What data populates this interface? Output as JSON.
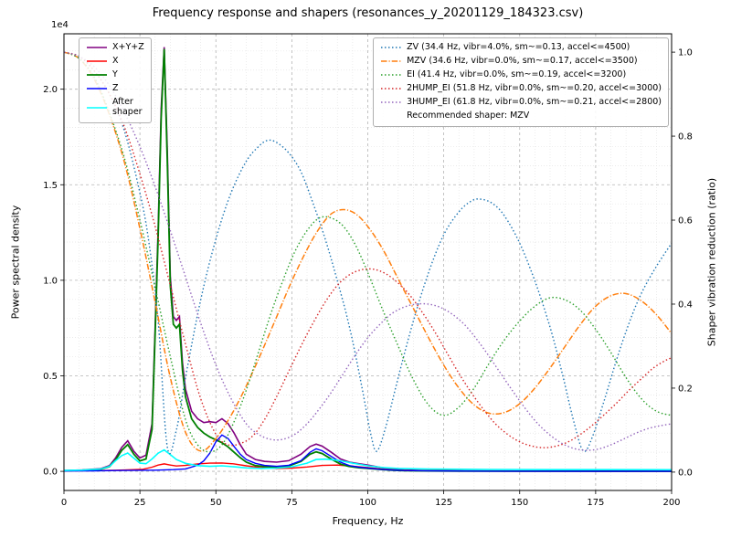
{
  "title": "Frequency response and shapers (resonances_y_20201129_184323.csv)",
  "axes": {
    "x": {
      "label": "Frequency, Hz",
      "min": 0,
      "max": 200,
      "ticks": [
        0,
        25,
        50,
        75,
        100,
        125,
        150,
        175,
        200
      ],
      "minor_step": 5
    },
    "y_left": {
      "label": "Power spectral density",
      "offset_text": "1e4",
      "min": -1000,
      "max": 22900,
      "ticks": [
        0,
        5000,
        10000,
        15000,
        20000
      ],
      "tick_labels": [
        "0.0",
        "0.5",
        "1.0",
        "1.5",
        "2.0"
      ],
      "minor_step": 1000
    },
    "y_right": {
      "label": "Shaper vibration reduction (ratio)",
      "min": -0.0437,
      "max": 1.0437,
      "ticks": [
        0,
        0.2,
        0.4,
        0.6,
        0.8,
        1.0
      ],
      "tick_labels": [
        "0.0",
        "0.2",
        "0.4",
        "0.6",
        "0.8",
        "1.0"
      ]
    }
  },
  "chart_data": {
    "type": "line",
    "title": "Frequency response and shapers (resonances_y_20201129_184323.csv)",
    "xlabel": "Frequency, Hz",
    "ylabel_left": "Power spectral density",
    "ylabel_right": "Shaper vibration reduction (ratio)",
    "recommended_shaper_note": "Recommended shaper: MZV",
    "series": [
      {
        "name": "x-y-z",
        "label": "X+Y+Z",
        "group": "psd",
        "axis": "left",
        "color": "#800080",
        "style": "solid",
        "width": 1.6,
        "smooth": false,
        "x": [
          0,
          6,
          12,
          15,
          17,
          19,
          21,
          23,
          25,
          27,
          29,
          30,
          31,
          32,
          33,
          34,
          35,
          36,
          37,
          38,
          39,
          40,
          42,
          44,
          46,
          48,
          50,
          52,
          54,
          56,
          58,
          60,
          63,
          66,
          70,
          74,
          78,
          81,
          83,
          85,
          88,
          91,
          94,
          97,
          100,
          104,
          108,
          112,
          118,
          130,
          150,
          175,
          200
        ],
        "y": [
          40,
          70,
          140,
          300,
          700,
          1250,
          1600,
          1050,
          700,
          850,
          2500,
          7600,
          12800,
          19000,
          22200,
          16800,
          10200,
          8100,
          7900,
          8100,
          5700,
          4300,
          3150,
          2750,
          2550,
          2600,
          2550,
          2750,
          2500,
          2000,
          1400,
          900,
          620,
          520,
          480,
          560,
          900,
          1300,
          1430,
          1320,
          1000,
          650,
          480,
          400,
          330,
          210,
          120,
          70,
          40,
          22,
          14,
          10,
          8
        ]
      },
      {
        "name": "x",
        "label": "X",
        "group": "psd",
        "axis": "left",
        "color": "#ff0000",
        "style": "solid",
        "width": 1.4,
        "smooth": false,
        "x": [
          0,
          10,
          20,
          26,
          29,
          31,
          33,
          35,
          37,
          40,
          44,
          48,
          52,
          56,
          60,
          65,
          70,
          75,
          80,
          85,
          90,
          95,
          100,
          105,
          110,
          120,
          140,
          170,
          200
        ],
        "y": [
          25,
          35,
          70,
          110,
          220,
          330,
          390,
          330,
          280,
          310,
          390,
          430,
          440,
          390,
          290,
          190,
          150,
          170,
          230,
          310,
          330,
          270,
          200,
          120,
          60,
          30,
          15,
          8,
          5
        ]
      },
      {
        "name": "y",
        "label": "Y",
        "group": "psd",
        "axis": "left",
        "color": "#008000",
        "style": "solid",
        "width": 1.8,
        "smooth": false,
        "x": [
          0,
          6,
          12,
          15,
          17,
          19,
          21,
          23,
          25,
          27,
          29,
          30,
          31,
          32,
          33,
          34,
          35,
          36,
          37,
          38,
          39,
          40,
          42,
          44,
          46,
          48,
          50,
          52,
          54,
          56,
          58,
          60,
          63,
          66,
          70,
          74,
          78,
          81,
          83,
          85,
          88,
          91,
          94,
          97,
          100,
          104,
          108,
          112,
          118,
          130,
          150,
          175,
          200
        ],
        "y": [
          30,
          55,
          110,
          250,
          600,
          1100,
          1400,
          900,
          550,
          650,
          2200,
          7200,
          12300,
          18500,
          22100,
          16200,
          9700,
          7700,
          7500,
          7700,
          5300,
          3900,
          2750,
          2300,
          2000,
          1800,
          1650,
          1500,
          1280,
          1000,
          720,
          480,
          300,
          250,
          230,
          280,
          520,
          900,
          1020,
          930,
          640,
          380,
          250,
          190,
          150,
          100,
          60,
          38,
          25,
          14,
          9,
          7,
          5
        ]
      },
      {
        "name": "z",
        "label": "Z",
        "group": "psd",
        "axis": "left",
        "color": "#0000ff",
        "style": "solid",
        "width": 1.4,
        "smooth": false,
        "x": [
          0,
          10,
          20,
          30,
          36,
          40,
          44,
          46,
          48,
          50,
          52,
          54,
          56,
          58,
          60,
          63,
          66,
          70,
          74,
          78,
          81,
          83,
          85,
          88,
          91,
          94,
          97,
          100,
          104,
          108,
          112,
          120,
          140,
          170,
          200
        ],
        "y": [
          20,
          28,
          45,
          60,
          90,
          130,
          320,
          550,
          950,
          1550,
          1900,
          1720,
          1300,
          900,
          620,
          420,
          310,
          260,
          320,
          560,
          1000,
          1180,
          1080,
          780,
          480,
          300,
          220,
          170,
          110,
          65,
          40,
          22,
          10,
          6,
          4
        ]
      },
      {
        "name": "after-shaper",
        "label": "After\nshaper",
        "group": "psd",
        "axis": "left",
        "color": "#00ffff",
        "style": "solid",
        "width": 1.6,
        "smooth": false,
        "x": [
          0,
          6,
          12,
          15,
          17,
          19,
          21,
          23,
          25,
          27,
          29,
          31,
          33,
          35,
          37,
          40,
          44,
          48,
          52,
          56,
          60,
          65,
          70,
          75,
          80,
          83,
          86,
          90,
          95,
          100,
          105,
          110,
          120,
          140,
          160,
          180,
          200
        ],
        "y": [
          45,
          65,
          120,
          260,
          560,
          820,
          960,
          690,
          430,
          400,
          650,
          950,
          1120,
          880,
          620,
          420,
          300,
          260,
          290,
          240,
          180,
          150,
          170,
          240,
          430,
          620,
          640,
          580,
          430,
          290,
          200,
          150,
          120,
          100,
          92,
          88,
          85
        ]
      },
      {
        "name": "zv",
        "label": "ZV (34.4 Hz, vibr=4.0%, sm~=0.13, accel<=4500)",
        "group": "shaper",
        "axis": "right",
        "color": "#1f77b4",
        "style": "dotted",
        "width": 1.4,
        "smooth": true,
        "x": [
          0,
          5,
          10,
          15,
          20,
          25,
          28,
          31,
          34,
          37,
          40,
          45,
          50,
          55,
          60,
          64,
          67,
          70,
          74,
          78,
          82,
          86,
          90,
          94,
          98,
          101,
          103,
          106,
          110,
          115,
          120,
          125,
          130,
          134,
          137,
          141,
          145,
          150,
          155,
          160,
          164,
          168,
          171,
          174,
          178,
          182,
          186,
          190,
          195,
          200
        ],
        "y": [
          1.0,
          0.99,
          0.955,
          0.9,
          0.81,
          0.665,
          0.545,
          0.36,
          0.06,
          0.1,
          0.225,
          0.41,
          0.555,
          0.665,
          0.74,
          0.775,
          0.79,
          0.785,
          0.76,
          0.715,
          0.64,
          0.555,
          0.455,
          0.345,
          0.205,
          0.09,
          0.05,
          0.11,
          0.225,
          0.36,
          0.475,
          0.565,
          0.62,
          0.645,
          0.65,
          0.64,
          0.61,
          0.545,
          0.455,
          0.345,
          0.235,
          0.115,
          0.05,
          0.085,
          0.175,
          0.27,
          0.355,
          0.425,
          0.49,
          0.545
        ]
      },
      {
        "name": "mzv",
        "label": "MZV (34.6 Hz, vibr=0.0%, sm~=0.17, accel<=3500)",
        "group": "shaper",
        "axis": "right",
        "color": "#ff7f0e",
        "style": "dashdot",
        "width": 1.5,
        "smooth": true,
        "x": [
          0,
          5,
          10,
          15,
          20,
          25,
          30,
          35,
          40,
          45,
          50,
          55,
          60,
          65,
          70,
          75,
          80,
          84,
          88,
          92,
          96,
          100,
          105,
          110,
          115,
          120,
          125,
          130,
          135,
          140,
          145,
          150,
          155,
          160,
          165,
          170,
          175,
          180,
          185,
          190,
          195,
          200
        ],
        "y": [
          1.0,
          0.985,
          0.935,
          0.85,
          0.735,
          0.58,
          0.405,
          0.225,
          0.095,
          0.05,
          0.08,
          0.135,
          0.205,
          0.285,
          0.37,
          0.455,
          0.53,
          0.58,
          0.615,
          0.625,
          0.615,
          0.585,
          0.53,
          0.46,
          0.39,
          0.32,
          0.255,
          0.2,
          0.16,
          0.14,
          0.142,
          0.163,
          0.2,
          0.248,
          0.3,
          0.352,
          0.395,
          0.42,
          0.425,
          0.408,
          0.375,
          0.33
        ]
      },
      {
        "name": "ei",
        "label": "EI (41.4 Hz, vibr=0.0%, sm~=0.19, accel<=3200)",
        "group": "shaper",
        "axis": "right",
        "color": "#2ca02c",
        "style": "dotted",
        "width": 1.4,
        "smooth": true,
        "x": [
          0,
          5,
          10,
          15,
          20,
          25,
          30,
          35,
          40,
          44,
          48,
          52,
          56,
          60,
          64,
          68,
          72,
          76,
          80,
          84,
          88,
          92,
          96,
          100,
          105,
          110,
          115,
          120,
          125,
          130,
          135,
          140,
          145,
          150,
          155,
          160,
          165,
          170,
          175,
          180,
          185,
          190,
          195,
          200
        ],
        "y": [
          1.0,
          0.985,
          0.94,
          0.855,
          0.745,
          0.6,
          0.44,
          0.275,
          0.125,
          0.065,
          0.048,
          0.065,
          0.12,
          0.195,
          0.285,
          0.375,
          0.455,
          0.525,
          0.575,
          0.605,
          0.605,
          0.585,
          0.54,
          0.475,
          0.385,
          0.3,
          0.22,
          0.16,
          0.135,
          0.155,
          0.2,
          0.26,
          0.315,
          0.36,
          0.395,
          0.415,
          0.41,
          0.385,
          0.34,
          0.285,
          0.225,
          0.175,
          0.145,
          0.135
        ]
      },
      {
        "name": "2hump-ei",
        "label": "2HUMP_EI (51.8 Hz, vibr=0.0%, sm~=0.20, accel<=3000)",
        "group": "shaper",
        "axis": "right",
        "color": "#d62728",
        "style": "dotted",
        "width": 1.4,
        "smooth": true,
        "x": [
          0,
          5,
          10,
          15,
          20,
          25,
          30,
          35,
          40,
          45,
          50,
          54,
          58,
          62,
          66,
          70,
          74,
          78,
          82,
          86,
          90,
          94,
          98,
          102,
          106,
          110,
          114,
          118,
          122,
          126,
          130,
          134,
          138,
          142,
          146,
          150,
          154,
          158,
          162,
          166,
          170,
          174,
          178,
          182,
          186,
          190,
          194,
          198,
          200
        ],
        "y": [
          1.0,
          0.99,
          0.955,
          0.9,
          0.82,
          0.71,
          0.585,
          0.445,
          0.305,
          0.175,
          0.09,
          0.065,
          0.068,
          0.085,
          0.125,
          0.18,
          0.24,
          0.3,
          0.355,
          0.405,
          0.445,
          0.47,
          0.482,
          0.483,
          0.472,
          0.45,
          0.42,
          0.38,
          0.335,
          0.285,
          0.235,
          0.19,
          0.15,
          0.115,
          0.09,
          0.072,
          0.062,
          0.058,
          0.062,
          0.072,
          0.09,
          0.112,
          0.138,
          0.165,
          0.195,
          0.222,
          0.248,
          0.266,
          0.272
        ]
      },
      {
        "name": "3hump-ei",
        "label": "3HUMP_EI (61.8 Hz, vibr=0.0%, sm~=0.21, accel<=2800)",
        "group": "shaper",
        "axis": "right",
        "color": "#9467bd",
        "style": "dotted",
        "width": 1.4,
        "smooth": true,
        "x": [
          0,
          5,
          10,
          15,
          20,
          25,
          30,
          35,
          40,
          45,
          50,
          55,
          60,
          64,
          68,
          72,
          76,
          80,
          84,
          88,
          92,
          96,
          100,
          104,
          108,
          112,
          116,
          120,
          124,
          128,
          132,
          136,
          140,
          144,
          148,
          152,
          156,
          160,
          164,
          168,
          172,
          176,
          180,
          184,
          188,
          192,
          196,
          200
        ],
        "y": [
          1.0,
          0.99,
          0.965,
          0.92,
          0.855,
          0.775,
          0.68,
          0.575,
          0.465,
          0.355,
          0.255,
          0.175,
          0.115,
          0.09,
          0.078,
          0.078,
          0.09,
          0.115,
          0.15,
          0.19,
          0.235,
          0.28,
          0.32,
          0.352,
          0.378,
          0.393,
          0.4,
          0.4,
          0.392,
          0.375,
          0.35,
          0.315,
          0.275,
          0.232,
          0.19,
          0.15,
          0.115,
          0.088,
          0.068,
          0.056,
          0.052,
          0.055,
          0.065,
          0.078,
          0.092,
          0.103,
          0.11,
          0.115
        ]
      }
    ]
  }
}
